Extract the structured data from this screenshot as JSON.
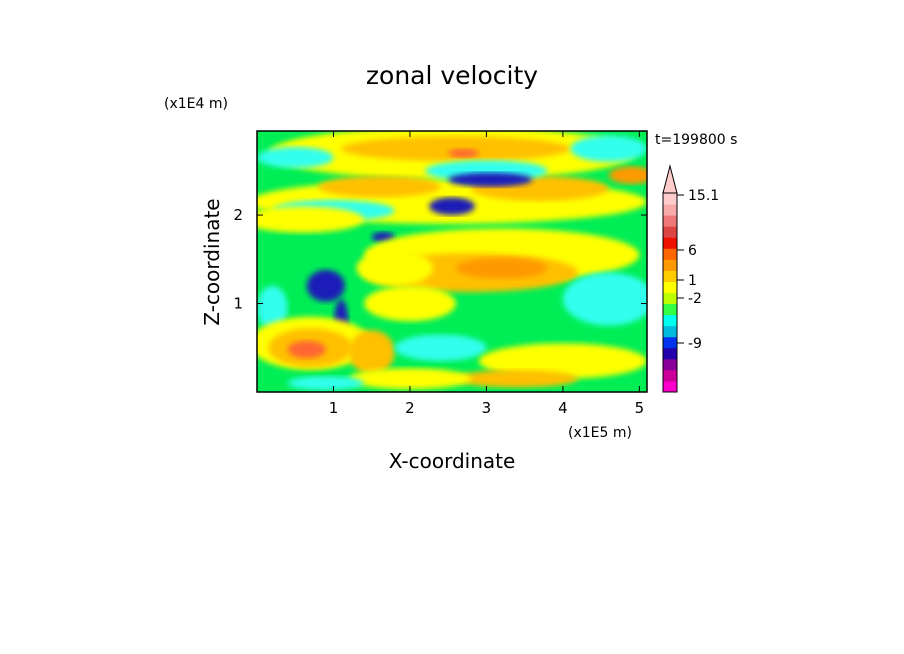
{
  "chart_data": {
    "type": "heatmap",
    "title": "zonal velocity",
    "xlabel": "X-coordinate",
    "ylabel": "Z-coordinate",
    "x_unit": "(x1E5 m)",
    "y_unit": "(x1E4 m)",
    "time_label": "t=199800 s",
    "xlim": [
      0,
      5.1
    ],
    "ylim": [
      0,
      2.95
    ],
    "x_ticks": [
      "1",
      "2",
      "3",
      "4",
      "5"
    ],
    "y_ticks": [
      "1",
      "2"
    ],
    "colorbar": {
      "labels": [
        "15.1",
        "6",
        "1",
        "-2",
        "-9"
      ],
      "colors": [
        "#ff00cc",
        "#cc0099",
        "#880099",
        "#2200aa",
        "#0033ee",
        "#00bbdd",
        "#00ffee",
        "#33ff44",
        "#bbff00",
        "#ffff00",
        "#ffcc00",
        "#ff9900",
        "#ff6600",
        "#ee1100",
        "#dd4444",
        "#ee7777",
        "#f8aaaa",
        "#ffcccc"
      ],
      "extend_max": true
    },
    "field_colors": {
      "strong_negative": "#1a1ab8",
      "negative": "#33ffee",
      "near_zero": "#00ee55",
      "weak_positive": "#ffff00",
      "positive": "#ffc000",
      "strong_positive": "#ff9900",
      "peak_positive": "#ff6633"
    }
  }
}
